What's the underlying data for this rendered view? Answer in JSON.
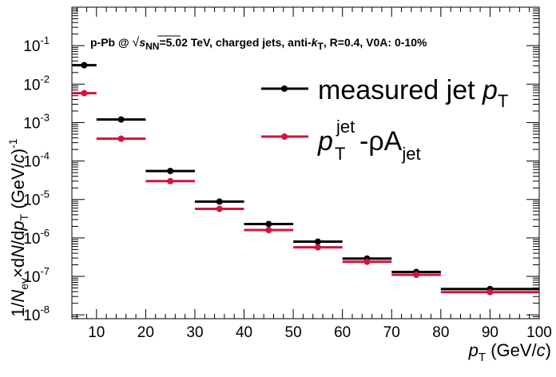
{
  "chart_data": {
    "type": "scatter",
    "annotation": {
      "prefix": "p-Pb @ ",
      "sqrt": "√",
      "s_var": "s",
      "s_sub": "NN",
      "rest1": "=5.02 TeV, charged jets, anti-",
      "k_var": "k",
      "k_sub": "T",
      "rest2": ", R=0.4, V0A: 0-10%"
    },
    "xlabel": {
      "var": "p",
      "sub": "T",
      "unit": " (GeV/",
      "unit_var": "c",
      "unit_end": ")"
    },
    "ylabel": {
      "p1": "1/",
      "N": "N",
      "ev": "ev",
      "p2": "×d",
      "N2": "N",
      "p3": "/d",
      "p": "p",
      "T": "T",
      "unit": " (GeV/",
      "c": "c",
      "close": ")",
      "exp": "-1"
    },
    "xlim": [
      5,
      100
    ],
    "ylim_log10": [
      -8.1,
      0
    ],
    "x_ticks": [
      10,
      20,
      30,
      40,
      50,
      60,
      70,
      80,
      90,
      100
    ],
    "x_ticklabels": [
      "10",
      "20",
      "30",
      "40",
      "50",
      "60",
      "70",
      "80",
      "90",
      "100"
    ],
    "y_ticks": [
      {
        "base": "10",
        "exp": "-1",
        "value": 0.1
      },
      {
        "base": "10",
        "exp": "-2",
        "value": 0.01
      },
      {
        "base": "10",
        "exp": "-3",
        "value": 0.001
      },
      {
        "base": "10",
        "exp": "-4",
        "value": 0.0001
      },
      {
        "base": "10",
        "exp": "-5",
        "value": 1e-05
      },
      {
        "base": "10",
        "exp": "-6",
        "value": 1e-06
      },
      {
        "base": "10",
        "exp": "-7",
        "value": 1e-07
      },
      {
        "base": "10",
        "exp": "-8",
        "value": 1e-08
      }
    ],
    "y_scale": "log",
    "grid": false,
    "legend_position": "top-right",
    "series": [
      {
        "key": "measured",
        "color": "#000000",
        "legend": {
          "text": "measured jet ",
          "var": "p",
          "sub": "T"
        },
        "points": [
          {
            "xlo": 5,
            "xhi": 10,
            "x": 7.5,
            "y": 0.031
          },
          {
            "xlo": 10,
            "xhi": 20,
            "x": 15,
            "y": 0.0012
          },
          {
            "xlo": 20,
            "xhi": 30,
            "x": 25,
            "y": 5.5e-05
          },
          {
            "xlo": 30,
            "xhi": 40,
            "x": 35,
            "y": 8.8e-06
          },
          {
            "xlo": 40,
            "xhi": 50,
            "x": 45,
            "y": 2.3e-06
          },
          {
            "xlo": 50,
            "xhi": 60,
            "x": 55,
            "y": 8e-07
          },
          {
            "xlo": 60,
            "xhi": 70,
            "x": 65,
            "y": 2.9e-07
          },
          {
            "xlo": 70,
            "xhi": 80,
            "x": 75,
            "y": 1.3e-07
          },
          {
            "xlo": 80,
            "xhi": 100,
            "x": 90,
            "y": 4.7e-08
          }
        ]
      },
      {
        "key": "subtracted",
        "color": "#d4143c",
        "legend": {
          "var": "p",
          "sup": "jet",
          "sub": "T",
          "text": "-ρA",
          "sub2": "jet"
        },
        "points": [
          {
            "xlo": 5,
            "xhi": 10,
            "x": 7.5,
            "y": 0.0058
          },
          {
            "xlo": 10,
            "xhi": 20,
            "x": 15,
            "y": 0.00038
          },
          {
            "xlo": 20,
            "xhi": 30,
            "x": 25,
            "y": 3e-05
          },
          {
            "xlo": 30,
            "xhi": 40,
            "x": 35,
            "y": 5.7e-06
          },
          {
            "xlo": 40,
            "xhi": 50,
            "x": 45,
            "y": 1.6e-06
          },
          {
            "xlo": 50,
            "xhi": 60,
            "x": 55,
            "y": 5.7e-07
          },
          {
            "xlo": 60,
            "xhi": 70,
            "x": 65,
            "y": 2.4e-07
          },
          {
            "xlo": 70,
            "xhi": 80,
            "x": 75,
            "y": 1.1e-07
          },
          {
            "xlo": 80,
            "xhi": 100,
            "x": 90,
            "y": 3.9e-08
          }
        ]
      }
    ]
  }
}
